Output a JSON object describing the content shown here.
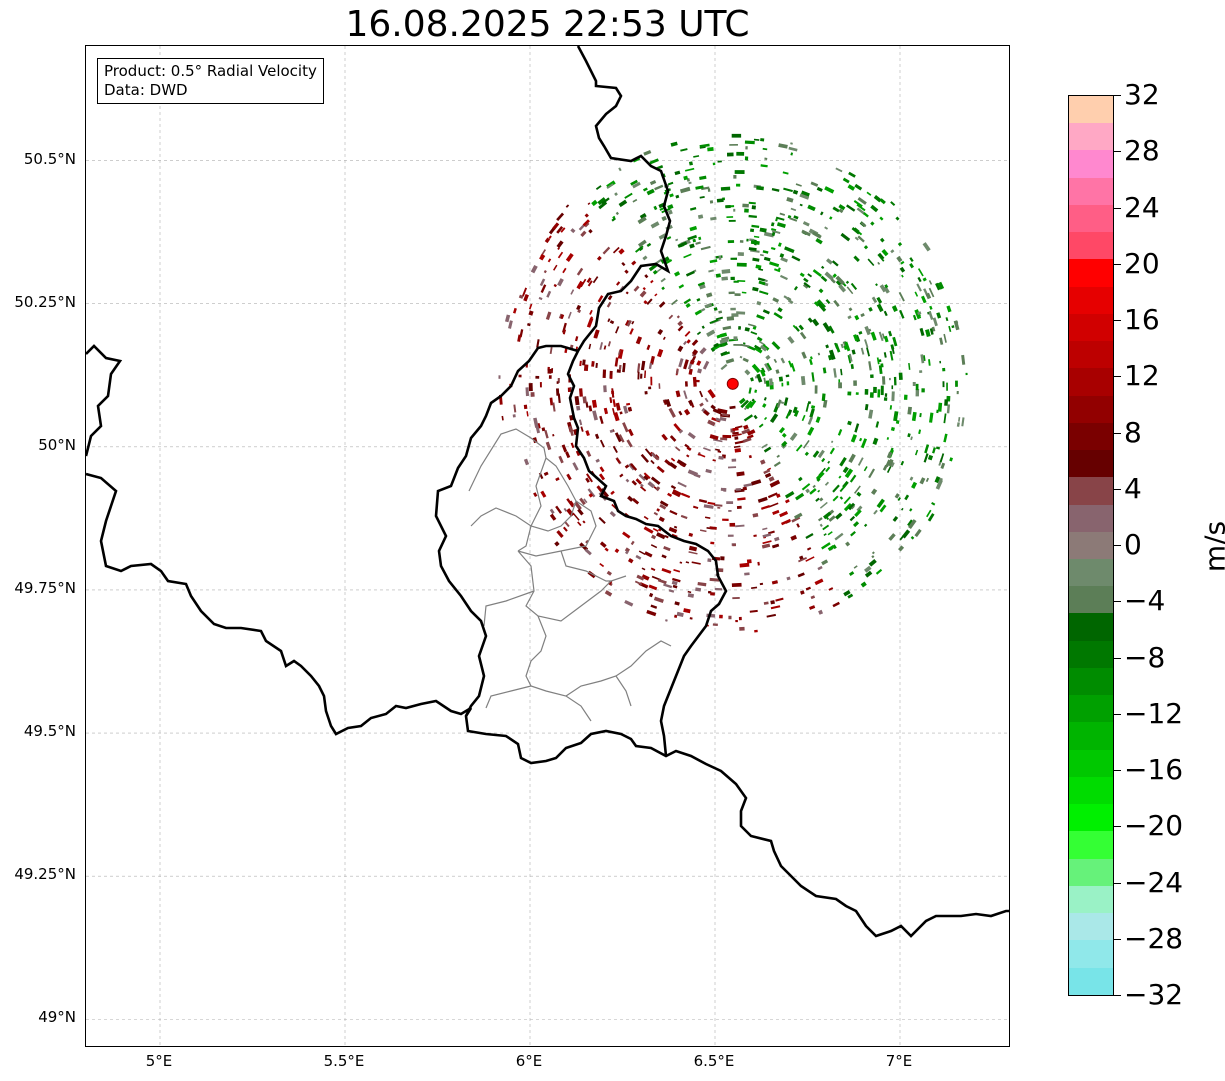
{
  "title": "16.08.2025 22:53 UTC",
  "info": {
    "line1": "Product: 0.5° Radial Velocity",
    "line2": "Data: DWD"
  },
  "map": {
    "lon_range": [
      4.8,
      7.3
    ],
    "lat_range": [
      48.95,
      50.7
    ],
    "lat_ticks": [
      {
        "value": 50.5,
        "label": "50.5°N"
      },
      {
        "value": 50.25,
        "label": "50.25°N"
      },
      {
        "value": 50.0,
        "label": "50°N"
      },
      {
        "value": 49.75,
        "label": "49.75°N"
      },
      {
        "value": 49.5,
        "label": "49.5°N"
      },
      {
        "value": 49.25,
        "label": "49.25°N"
      },
      {
        "value": 49.0,
        "label": "49°N"
      }
    ],
    "lon_ticks": [
      {
        "value": 5.0,
        "label": "5°E"
      },
      {
        "value": 5.5,
        "label": "5.5°E"
      },
      {
        "value": 6.0,
        "label": "6°E"
      },
      {
        "value": 6.5,
        "label": "6.5°E"
      },
      {
        "value": 7.0,
        "label": "7°E"
      }
    ],
    "radar_site": {
      "lon": 6.548,
      "lat": 50.11,
      "color": "#ff0000"
    },
    "gridline_color": "#b0b0b0",
    "border_color": "#000000",
    "region_border_color": "#808080"
  },
  "colorbar": {
    "unit": "m/s",
    "range": [
      -32,
      32
    ],
    "tick_labels": [
      "32",
      "28",
      "24",
      "20",
      "16",
      "12",
      "8",
      "4",
      "0",
      "−4",
      "−8",
      "−12",
      "−16",
      "−20",
      "−24",
      "−28",
      "−32"
    ],
    "colors_top_to_bottom": [
      "#ffcfae",
      "#ffa8c5",
      "#ff88cf",
      "#ff74a6",
      "#ff5e86",
      "#ff4866",
      "#ff0000",
      "#e60000",
      "#d10000",
      "#bd0000",
      "#a80000",
      "#920000",
      "#7a0000",
      "#660000",
      "#884448",
      "#88646e",
      "#8c7a77",
      "#6e8a6c",
      "#5c7e57",
      "#006600",
      "#007800",
      "#008c00",
      "#00a000",
      "#00b400",
      "#00c800",
      "#00dc00",
      "#00f000",
      "#34ff34",
      "#66f27a",
      "#9af2c6",
      "#aae8e8",
      "#90e8ea",
      "#78e4e8"
    ]
  }
}
